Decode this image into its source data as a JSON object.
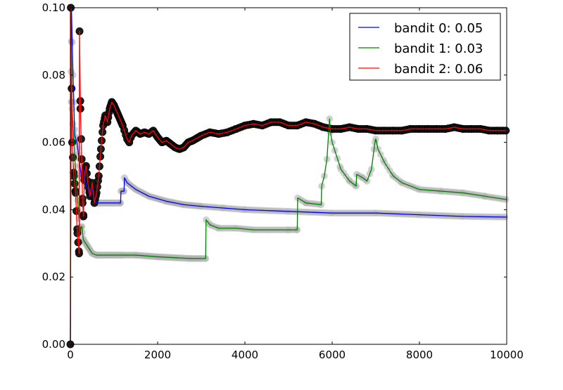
{
  "chart_data": {
    "type": "line",
    "title": "",
    "xlabel": "",
    "ylabel": "",
    "xlim": [
      0,
      10000
    ],
    "ylim": [
      0.0,
      0.1
    ],
    "xticks": [
      0,
      2000,
      4000,
      6000,
      8000,
      10000
    ],
    "xtick_labels": [
      "0",
      "2000",
      "4000",
      "6000",
      "8000",
      "10000"
    ],
    "yticks": [
      0.0,
      0.02,
      0.04,
      0.06,
      0.08,
      0.1
    ],
    "ytick_labels": [
      "0.00",
      "0.02",
      "0.04",
      "0.06",
      "0.08",
      "0.10"
    ],
    "grid": false,
    "legend": {
      "placement": "top-right"
    },
    "series": [
      {
        "name": "bandit 0: 0.05",
        "color": "#0000ff",
        "points": [
          [
            0,
            0.0
          ],
          [
            25,
            0.1
          ],
          [
            60,
            0.08
          ],
          [
            100,
            0.062
          ],
          [
            150,
            0.06
          ],
          [
            200,
            0.055
          ],
          [
            250,
            0.05
          ],
          [
            300,
            0.052
          ],
          [
            350,
            0.048
          ],
          [
            400,
            0.046
          ],
          [
            450,
            0.044
          ],
          [
            500,
            0.046
          ],
          [
            550,
            0.043
          ],
          [
            600,
            0.042
          ],
          [
            700,
            0.042
          ],
          [
            900,
            0.042
          ],
          [
            1150,
            0.042
          ],
          [
            1160,
            0.0455
          ],
          [
            1230,
            0.0455
          ],
          [
            1240,
            0.0495
          ],
          [
            1300,
            0.048
          ],
          [
            1500,
            0.046
          ],
          [
            1800,
            0.044
          ],
          [
            2200,
            0.0425
          ],
          [
            2600,
            0.0415
          ],
          [
            3000,
            0.041
          ],
          [
            3500,
            0.0405
          ],
          [
            4000,
            0.04
          ],
          [
            5000,
            0.0395
          ],
          [
            6000,
            0.039
          ],
          [
            7000,
            0.039
          ],
          [
            8000,
            0.0385
          ],
          [
            9000,
            0.038
          ],
          [
            10000,
            0.0378
          ]
        ]
      },
      {
        "name": "bandit 1: 0.03",
        "color": "#008000",
        "points": [
          [
            0,
            0.0
          ],
          [
            20,
            0.09
          ],
          [
            40,
            0.07
          ],
          [
            80,
            0.06
          ],
          [
            130,
            0.05
          ],
          [
            180,
            0.04
          ],
          [
            220,
            0.034
          ],
          [
            260,
            0.035
          ],
          [
            300,
            0.031
          ],
          [
            400,
            0.029
          ],
          [
            500,
            0.027
          ],
          [
            600,
            0.0265
          ],
          [
            800,
            0.0265
          ],
          [
            1500,
            0.0265
          ],
          [
            2000,
            0.026
          ],
          [
            2750,
            0.0255
          ],
          [
            3100,
            0.0255
          ],
          [
            3110,
            0.037
          ],
          [
            3200,
            0.0355
          ],
          [
            3400,
            0.0345
          ],
          [
            3800,
            0.0345
          ],
          [
            4200,
            0.034
          ],
          [
            5000,
            0.034
          ],
          [
            5200,
            0.034
          ],
          [
            5210,
            0.0435
          ],
          [
            5400,
            0.042
          ],
          [
            5750,
            0.0415
          ],
          [
            5760,
            0.047
          ],
          [
            5820,
            0.05
          ],
          [
            5880,
            0.055
          ],
          [
            5940,
            0.067
          ],
          [
            5960,
            0.063
          ],
          [
            6000,
            0.06
          ],
          [
            6200,
            0.052
          ],
          [
            6400,
            0.0485
          ],
          [
            6550,
            0.047
          ],
          [
            6560,
            0.0505
          ],
          [
            6700,
            0.0495
          ],
          [
            6800,
            0.0485
          ],
          [
            6900,
            0.052
          ],
          [
            6980,
            0.06
          ],
          [
            7000,
            0.061
          ],
          [
            7050,
            0.058
          ],
          [
            7200,
            0.054
          ],
          [
            7400,
            0.05
          ],
          [
            7600,
            0.048
          ],
          [
            8000,
            0.046
          ],
          [
            8500,
            0.0455
          ],
          [
            9000,
            0.045
          ],
          [
            9500,
            0.044
          ],
          [
            10000,
            0.043
          ]
        ]
      },
      {
        "name": "bandit 2: 0.06",
        "color": "#ff0000",
        "points": [
          [
            0,
            0.0
          ],
          [
            10,
            0.1
          ],
          [
            40,
            0.06
          ],
          [
            80,
            0.05
          ],
          [
            120,
            0.045
          ],
          [
            160,
            0.033
          ],
          [
            200,
            0.027
          ],
          [
            210,
            0.093
          ],
          [
            230,
            0.07
          ],
          [
            260,
            0.055
          ],
          [
            280,
            0.042
          ],
          [
            300,
            0.038
          ],
          [
            320,
            0.05
          ],
          [
            360,
            0.053
          ],
          [
            400,
            0.048
          ],
          [
            450,
            0.044
          ],
          [
            500,
            0.048
          ],
          [
            550,
            0.042
          ],
          [
            600,
            0.045
          ],
          [
            650,
            0.05
          ],
          [
            700,
            0.058
          ],
          [
            750,
            0.065
          ],
          [
            800,
            0.068
          ],
          [
            850,
            0.066
          ],
          [
            900,
            0.07
          ],
          [
            950,
            0.072
          ],
          [
            1000,
            0.071
          ],
          [
            1100,
            0.068
          ],
          [
            1200,
            0.065
          ],
          [
            1300,
            0.061
          ],
          [
            1350,
            0.06
          ],
          [
            1400,
            0.062
          ],
          [
            1500,
            0.0635
          ],
          [
            1600,
            0.0625
          ],
          [
            1700,
            0.063
          ],
          [
            1800,
            0.0625
          ],
          [
            1900,
            0.0635
          ],
          [
            2000,
            0.0615
          ],
          [
            2100,
            0.06
          ],
          [
            2200,
            0.0605
          ],
          [
            2300,
            0.0595
          ],
          [
            2400,
            0.0585
          ],
          [
            2500,
            0.058
          ],
          [
            2600,
            0.0585
          ],
          [
            2700,
            0.06
          ],
          [
            2800,
            0.0605
          ],
          [
            3000,
            0.062
          ],
          [
            3200,
            0.063
          ],
          [
            3400,
            0.0625
          ],
          [
            3600,
            0.063
          ],
          [
            3800,
            0.064
          ],
          [
            4000,
            0.065
          ],
          [
            4200,
            0.0655
          ],
          [
            4400,
            0.065
          ],
          [
            4600,
            0.066
          ],
          [
            4800,
            0.066
          ],
          [
            5000,
            0.065
          ],
          [
            5200,
            0.065
          ],
          [
            5400,
            0.066
          ],
          [
            5600,
            0.0655
          ],
          [
            5800,
            0.0645
          ],
          [
            6000,
            0.064
          ],
          [
            6200,
            0.064
          ],
          [
            6400,
            0.0645
          ],
          [
            6600,
            0.064
          ],
          [
            6800,
            0.064
          ],
          [
            7000,
            0.0635
          ],
          [
            7200,
            0.0635
          ],
          [
            7400,
            0.0635
          ],
          [
            7600,
            0.0635
          ],
          [
            7800,
            0.064
          ],
          [
            8000,
            0.064
          ],
          [
            8200,
            0.064
          ],
          [
            8400,
            0.064
          ],
          [
            8600,
            0.064
          ],
          [
            8800,
            0.0645
          ],
          [
            9000,
            0.064
          ],
          [
            9200,
            0.064
          ],
          [
            9400,
            0.064
          ],
          [
            9600,
            0.0635
          ],
          [
            9800,
            0.0635
          ],
          [
            10000,
            0.0635
          ]
        ]
      }
    ]
  }
}
